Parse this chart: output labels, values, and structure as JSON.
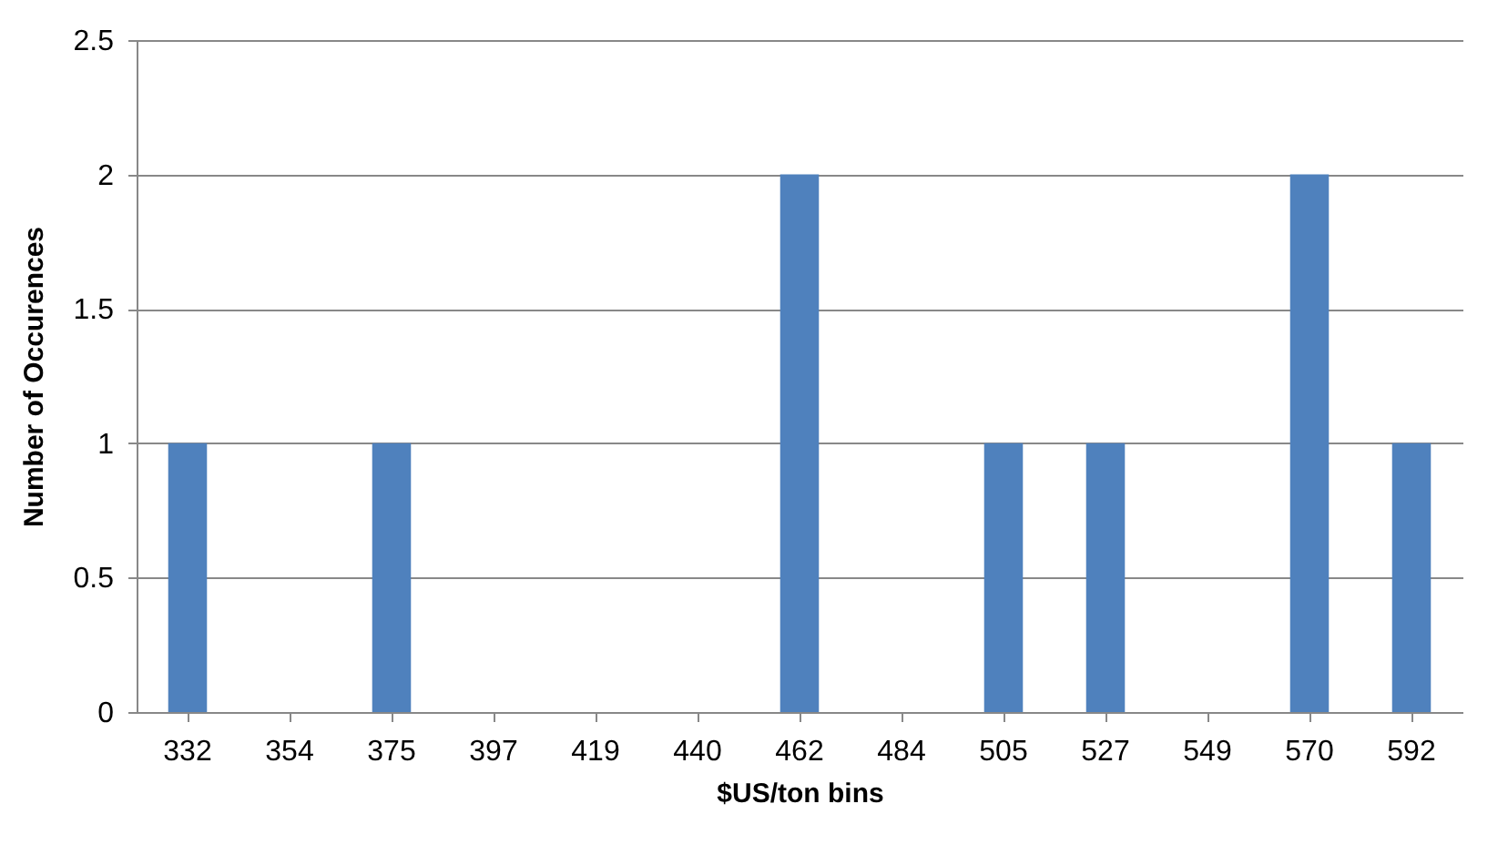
{
  "chart_data": {
    "type": "bar",
    "xlabel": "$US/ton bins",
    "ylabel": "Number of Occurences",
    "categories": [
      "332",
      "354",
      "375",
      "397",
      "419",
      "440",
      "462",
      "484",
      "505",
      "527",
      "549",
      "570",
      "592"
    ],
    "values": [
      1,
      0,
      1,
      0,
      0,
      0,
      2,
      0,
      1,
      1,
      0,
      2,
      1
    ],
    "color": "#4f81bd",
    "ylim": [
      0,
      2.5
    ],
    "yticks": [
      0,
      0.5,
      1,
      1.5,
      2,
      2.5
    ],
    "grid": "y"
  }
}
